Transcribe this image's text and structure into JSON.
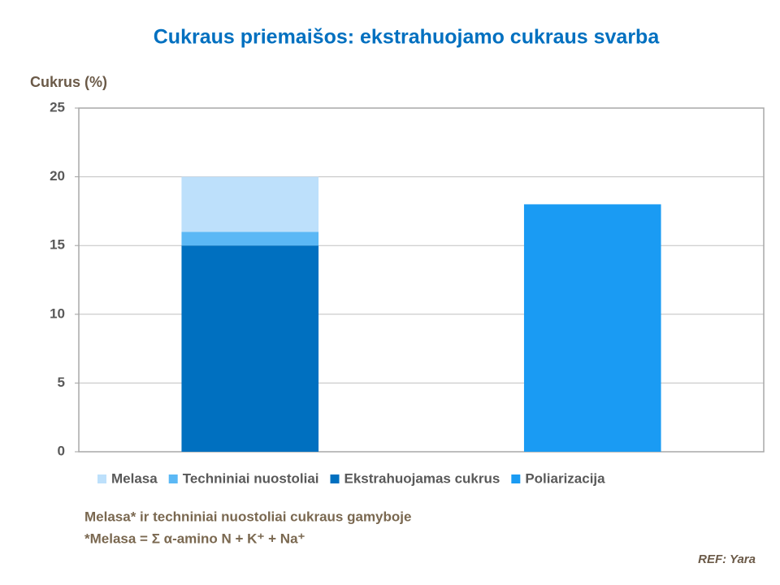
{
  "chart_data": {
    "type": "stacked-bar",
    "title": "Cukraus priemaišos: ekstrahuojamo cukraus svarba",
    "y_label": "Cukrus (%)",
    "categories": [
      null,
      null
    ],
    "series": [
      {
        "name": "Melasa",
        "color": "#bde0fb",
        "values": [
          4,
          null
        ]
      },
      {
        "name": "Techniniai nuostoliai",
        "color": "#5bb8f5",
        "values": [
          1,
          null
        ]
      },
      {
        "name": "Ekstrahuojamas cukrus",
        "color": "#0070c0",
        "values": [
          15,
          null
        ]
      },
      {
        "name": "Poliarizacija",
        "color": "#1a9bf3",
        "values": [
          null,
          18
        ]
      }
    ],
    "ylim": [
      0,
      25
    ],
    "yticks": [
      0,
      5,
      10,
      15,
      20,
      25
    ],
    "grid": true,
    "legend": "bottom",
    "notes": [
      "Melasa* ir techniniai nuostoliai cukraus gamyboje",
      "*Melasa = Σ α-amino N + K⁺ + Na⁺"
    ],
    "source": "REF: Yara"
  }
}
